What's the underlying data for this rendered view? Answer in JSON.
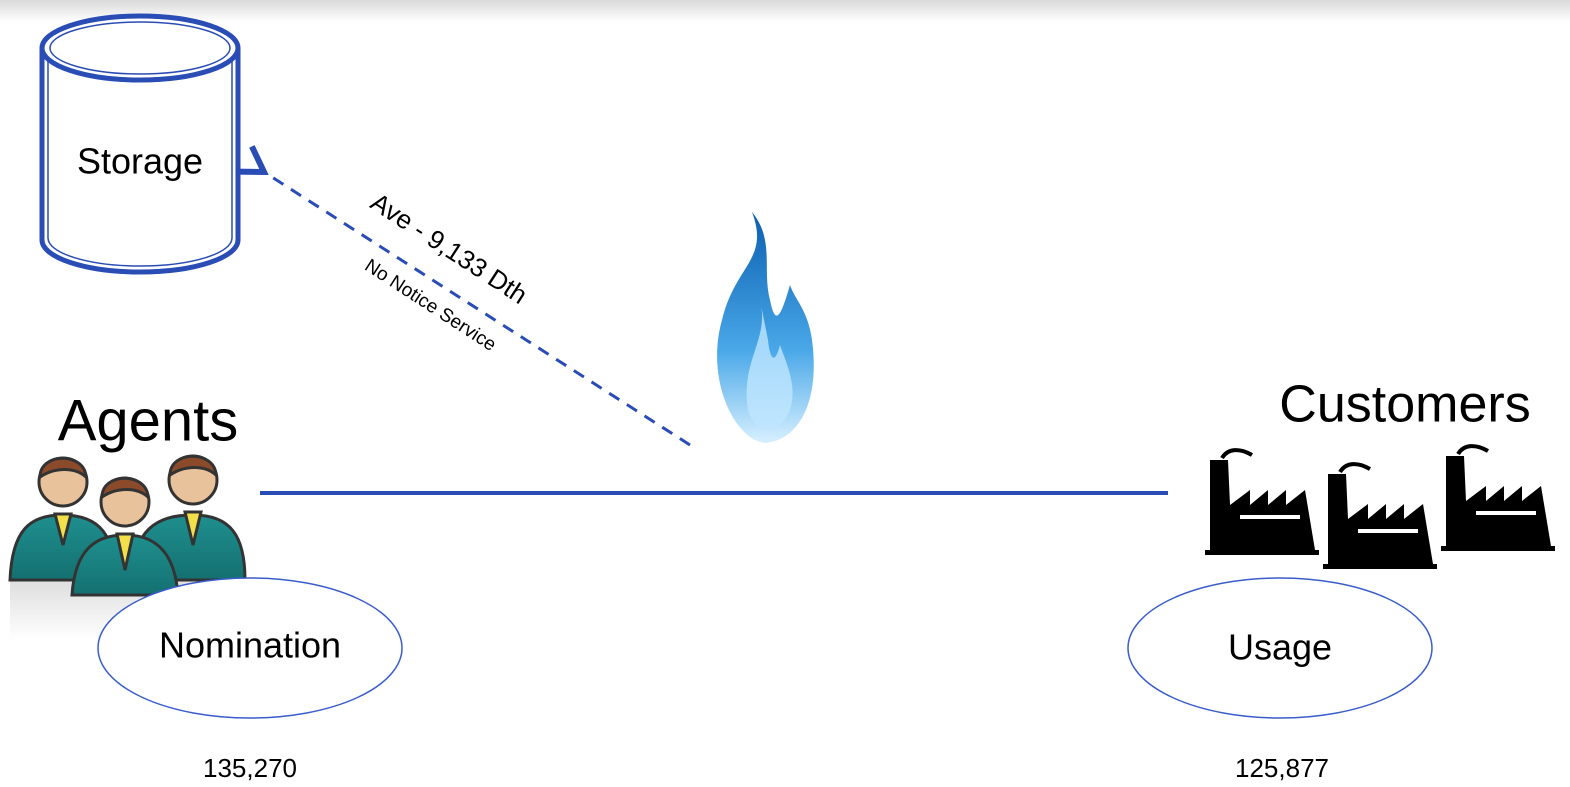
{
  "storage": {
    "label": "Storage"
  },
  "flow": {
    "label": "Ave - 9,133 Dth",
    "sublabel": "No Notice Service"
  },
  "agents": {
    "title": "Agents",
    "ellipse": "Nomination",
    "amount": "135,270"
  },
  "customers": {
    "title": "Customers",
    "ellipse": "Usage",
    "amount": "125,877"
  }
}
